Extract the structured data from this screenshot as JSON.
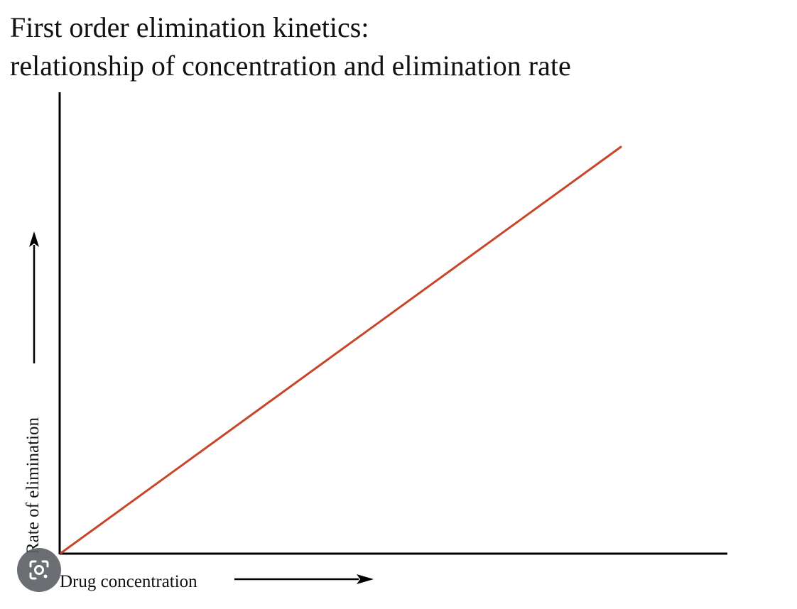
{
  "chart_data": {
    "type": "line",
    "title": "First order elimination kinetics:",
    "subtitle": "relationship of concentration and elimination rate",
    "xlabel": "Drug concentration",
    "ylabel": "Rate of elimination",
    "grid": false,
    "legend": "none",
    "series": [
      {
        "color": "#c8452a",
        "x": [
          0,
          1
        ],
        "y": [
          0,
          1
        ]
      }
    ]
  },
  "overlay": {
    "lens_icon": "lens-camera-icon"
  }
}
